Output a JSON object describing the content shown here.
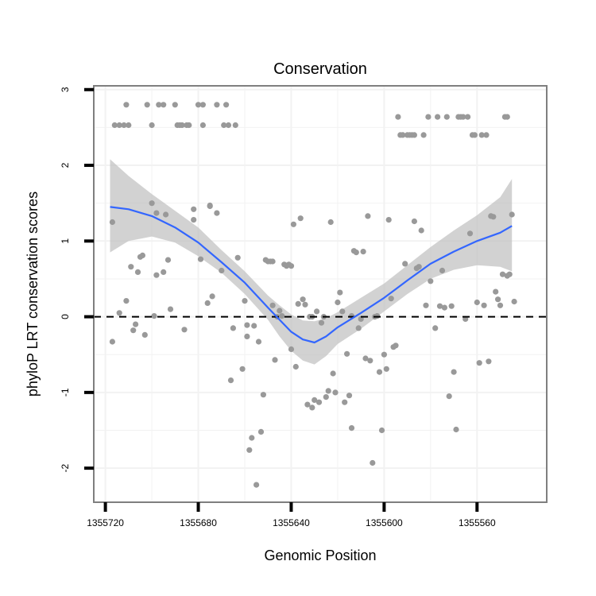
{
  "chart_data": {
    "type": "scatter",
    "title": "Conservation",
    "xlabel": "Genomic Position",
    "ylabel": "phyloP LRT conservation scores",
    "x_reversed": true,
    "xlim": [
      1355725,
      1355530
    ],
    "ylim": [
      -2.45,
      3.05
    ],
    "x_ticks": [
      1355720,
      1355680,
      1355640,
      1355600,
      1355560
    ],
    "x_tick_labels": [
      "1355720",
      "1355680",
      "1355640",
      "1355600",
      "1355560"
    ],
    "y_ticks": [
      -2,
      -1,
      0,
      1,
      2,
      3
    ],
    "y_tick_labels": [
      "-2",
      "-1",
      "0",
      "1",
      "2",
      "3"
    ],
    "reference_line": {
      "y": 0,
      "style": "dashed"
    },
    "colors": {
      "points": "#999999",
      "smooth": "#3366ff",
      "ribbon": "#bfbfbf",
      "panel_border": "#7f7f7f",
      "grid": "#f2f2f2"
    },
    "points": [
      [
        1355717,
        -0.33
      ],
      [
        1355717,
        1.25
      ],
      [
        1355716,
        2.53
      ],
      [
        1355714,
        2.53
      ],
      [
        1355714,
        0.05
      ],
      [
        1355712,
        2.53
      ],
      [
        1355711,
        2.8
      ],
      [
        1355711,
        0.21
      ],
      [
        1355710,
        2.53
      ],
      [
        1355709,
        0.66
      ],
      [
        1355708,
        -0.18
      ],
      [
        1355707,
        -0.1
      ],
      [
        1355706,
        0.59
      ],
      [
        1355705,
        0.79
      ],
      [
        1355704,
        0.81
      ],
      [
        1355703,
        -0.24
      ],
      [
        1355702,
        2.8
      ],
      [
        1355700,
        1.5
      ],
      [
        1355700,
        2.53
      ],
      [
        1355699,
        0.01
      ],
      [
        1355698,
        1.37
      ],
      [
        1355698,
        0.55
      ],
      [
        1355697,
        2.8
      ],
      [
        1355695,
        2.8
      ],
      [
        1355695,
        0.59
      ],
      [
        1355694,
        1.35
      ],
      [
        1355693,
        0.75
      ],
      [
        1355692,
        0.1
      ],
      [
        1355690,
        2.8
      ],
      [
        1355689,
        2.53
      ],
      [
        1355688,
        2.53
      ],
      [
        1355687,
        2.53
      ],
      [
        1355686,
        -0.17
      ],
      [
        1355685,
        2.53
      ],
      [
        1355684,
        2.53
      ],
      [
        1355682,
        1.28
      ],
      [
        1355682,
        1.42
      ],
      [
        1355680,
        2.8
      ],
      [
        1355679,
        0.76
      ],
      [
        1355678,
        2.53
      ],
      [
        1355678,
        2.8
      ],
      [
        1355676,
        0.18
      ],
      [
        1355675,
        1.47
      ],
      [
        1355675,
        1.46
      ],
      [
        1355674,
        0.27
      ],
      [
        1355672,
        2.8
      ],
      [
        1355672,
        1.37
      ],
      [
        1355670,
        0.61
      ],
      [
        1355669,
        2.53
      ],
      [
        1355668,
        2.8
      ],
      [
        1355667,
        2.53
      ],
      [
        1355666,
        -0.84
      ],
      [
        1355665,
        -0.15
      ],
      [
        1355664,
        2.53
      ],
      [
        1355663,
        0.78
      ],
      [
        1355661,
        -0.69
      ],
      [
        1355660,
        0.21
      ],
      [
        1355659,
        -0.26
      ],
      [
        1355659,
        -0.11
      ],
      [
        1355658,
        -1.76
      ],
      [
        1355657,
        -1.6
      ],
      [
        1355656,
        -0.12
      ],
      [
        1355655,
        -2.22
      ],
      [
        1355654,
        -0.33
      ],
      [
        1355653,
        -1.52
      ],
      [
        1355652,
        -1.03
      ],
      [
        1355651,
        0.75
      ],
      [
        1355650,
        0.73
      ],
      [
        1355649,
        0.73
      ],
      [
        1355648,
        0.73
      ],
      [
        1355648,
        0.15
      ],
      [
        1355647,
        -0.57
      ],
      [
        1355646,
        0.0
      ],
      [
        1355645,
        0.08
      ],
      [
        1355644,
        0.01
      ],
      [
        1355643,
        0.69
      ],
      [
        1355642,
        0.67
      ],
      [
        1355641,
        0.69
      ],
      [
        1355640,
        -0.43
      ],
      [
        1355640,
        0.67
      ],
      [
        1355639,
        1.22
      ],
      [
        1355638,
        -0.66
      ],
      [
        1355637,
        0.17
      ],
      [
        1355636,
        1.3
      ],
      [
        1355635,
        0.23
      ],
      [
        1355634,
        0.16
      ],
      [
        1355633,
        -1.16
      ],
      [
        1355632,
        0.0
      ],
      [
        1355631,
        -1.2
      ],
      [
        1355631,
        0.0
      ],
      [
        1355630,
        -1.1
      ],
      [
        1355629,
        0.07
      ],
      [
        1355628,
        -1.13
      ],
      [
        1355627,
        -0.08
      ],
      [
        1355626,
        0.0
      ],
      [
        1355625,
        -1.06
      ],
      [
        1355624,
        -0.98
      ],
      [
        1355623,
        1.25
      ],
      [
        1355622,
        -0.75
      ],
      [
        1355621,
        -1.0
      ],
      [
        1355620,
        0.19
      ],
      [
        1355619,
        0.32
      ],
      [
        1355618,
        0.07
      ],
      [
        1355617,
        -1.13
      ],
      [
        1355616,
        -0.49
      ],
      [
        1355615,
        -1.04
      ],
      [
        1355614,
        -1.47
      ],
      [
        1355614,
        0.01
      ],
      [
        1355613,
        0.87
      ],
      [
        1355612,
        0.85
      ],
      [
        1355611,
        -0.15
      ],
      [
        1355610,
        -0.03
      ],
      [
        1355609,
        0.86
      ],
      [
        1355608,
        -0.55
      ],
      [
        1355607,
        1.33
      ],
      [
        1355606,
        -0.58
      ],
      [
        1355605,
        -1.93
      ],
      [
        1355604,
        0.0
      ],
      [
        1355603,
        0.01
      ],
      [
        1355602,
        -0.73
      ],
      [
        1355601,
        -1.5
      ],
      [
        1355600,
        -0.5
      ],
      [
        1355599,
        -0.69
      ],
      [
        1355598,
        1.28
      ],
      [
        1355597,
        0.24
      ],
      [
        1355596,
        -0.4
      ],
      [
        1355595,
        -0.38
      ],
      [
        1355594,
        2.64
      ],
      [
        1355593,
        2.4
      ],
      [
        1355592,
        2.4
      ],
      [
        1355591,
        0.7
      ],
      [
        1355590,
        2.4
      ],
      [
        1355589,
        2.4
      ],
      [
        1355588,
        2.4
      ],
      [
        1355587,
        2.4
      ],
      [
        1355587,
        1.26
      ],
      [
        1355586,
        0.64
      ],
      [
        1355585,
        0.66
      ],
      [
        1355584,
        1.14
      ],
      [
        1355583,
        2.4
      ],
      [
        1355582,
        0.15
      ],
      [
        1355581,
        2.64
      ],
      [
        1355580,
        0.47
      ],
      [
        1355578,
        -0.15
      ],
      [
        1355577,
        2.64
      ],
      [
        1355576,
        0.14
      ],
      [
        1355575,
        0.61
      ],
      [
        1355574,
        0.12
      ],
      [
        1355573,
        2.64
      ],
      [
        1355572,
        -1.05
      ],
      [
        1355571,
        0.14
      ],
      [
        1355570,
        -0.73
      ],
      [
        1355569,
        -1.49
      ],
      [
        1355568,
        2.64
      ],
      [
        1355567,
        2.64
      ],
      [
        1355566,
        2.64
      ],
      [
        1355565,
        -0.03
      ],
      [
        1355564,
        2.64
      ],
      [
        1355563,
        1.1
      ],
      [
        1355562,
        2.4
      ],
      [
        1355561,
        2.4
      ],
      [
        1355560,
        0.19
      ],
      [
        1355559,
        -0.61
      ],
      [
        1355558,
        2.4
      ],
      [
        1355557,
        0.15
      ],
      [
        1355556,
        2.4
      ],
      [
        1355555,
        -0.59
      ],
      [
        1355554,
        1.33
      ],
      [
        1355553,
        1.32
      ],
      [
        1355552,
        0.33
      ],
      [
        1355551,
        0.23
      ],
      [
        1355550,
        0.15
      ],
      [
        1355549,
        0.56
      ],
      [
        1355548,
        2.64
      ],
      [
        1355547,
        2.64
      ],
      [
        1355547,
        0.54
      ],
      [
        1355546,
        0.56
      ],
      [
        1355545,
        1.35
      ],
      [
        1355544,
        0.2
      ]
    ],
    "smooth": {
      "method": "loess",
      "x": [
        1355718,
        1355710,
        1355700,
        1355690,
        1355680,
        1355670,
        1355660,
        1355650,
        1355645,
        1355640,
        1355635,
        1355630,
        1355625,
        1355620,
        1355610,
        1355600,
        1355590,
        1355580,
        1355570,
        1355560,
        1355550,
        1355545
      ],
      "y": [
        1.45,
        1.42,
        1.33,
        1.18,
        0.98,
        0.72,
        0.45,
        0.12,
        -0.04,
        -0.2,
        -0.3,
        -0.34,
        -0.26,
        -0.14,
        0.05,
        0.25,
        0.48,
        0.7,
        0.86,
        1.0,
        1.11,
        1.2
      ],
      "lower": [
        0.85,
        1.0,
        1.06,
        0.98,
        0.8,
        0.58,
        0.3,
        -0.04,
        -0.26,
        -0.45,
        -0.58,
        -0.63,
        -0.52,
        -0.36,
        -0.16,
        0.07,
        0.3,
        0.5,
        0.62,
        0.68,
        0.66,
        0.6
      ],
      "upper": [
        2.08,
        1.86,
        1.62,
        1.4,
        1.18,
        0.88,
        0.6,
        0.28,
        0.15,
        0.03,
        -0.05,
        -0.06,
        -0.02,
        0.06,
        0.25,
        0.44,
        0.68,
        0.92,
        1.14,
        1.34,
        1.58,
        1.82
      ]
    }
  }
}
